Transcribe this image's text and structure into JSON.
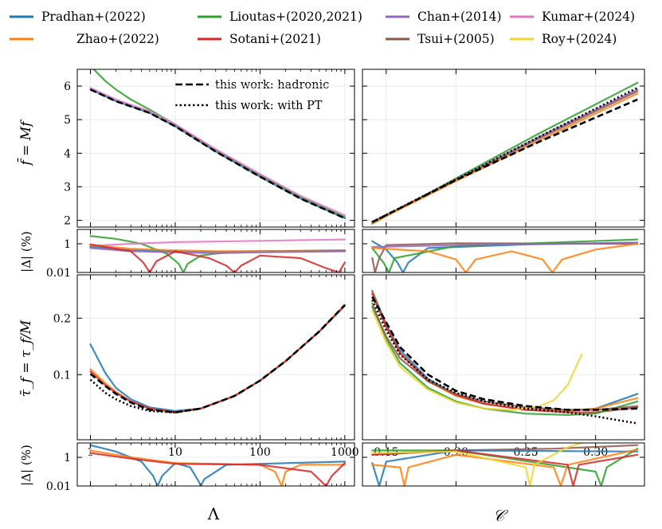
{
  "colors": {
    "pradhan": "#1f77b4",
    "zhao": "#ff7f0e",
    "lioutas": "#2ca02c",
    "sotani": "#d62728",
    "chan": "#9467bd",
    "tsui": "#8c564b",
    "kumar": "#e377c2",
    "roy": "#f0d531",
    "hadronic": "#000000",
    "withpt": "#000000"
  },
  "legend": [
    {
      "key": "pradhan",
      "label": "Pradhan+(2022)"
    },
    {
      "key": "lioutas",
      "label": "Lioutas+(2020,2021)"
    },
    {
      "key": "chan",
      "label": "Chan+(2014)"
    },
    {
      "key": "kumar",
      "label": "Kumar+(2024)"
    },
    {
      "key": "zhao",
      "label": "Zhao+(2022)"
    },
    {
      "key": "sotani",
      "label": "Sotani+(2021)"
    },
    {
      "key": "tsui",
      "label": "Tsui+(2005)"
    },
    {
      "key": "roy",
      "label": "Roy+(2024)"
    }
  ],
  "inner_legend": [
    {
      "key": "hadronic",
      "style": "dashed",
      "label": "this work: hadronic"
    },
    {
      "key": "withpt",
      "style": "dotted",
      "label": "this work: with PT"
    }
  ],
  "chart_data": [
    {
      "id": "f_vs_lambda",
      "type": "line",
      "xscale": "log",
      "xlim": [
        0.7,
        1300
      ],
      "ylim": [
        1.8,
        6.5
      ],
      "yticks": [
        "2",
        "3",
        "4",
        "5",
        "6"
      ],
      "ylabel": "f̄ = Mf",
      "series": [
        {
          "key": "lioutas",
          "x": [
            1,
            1.5,
            2,
            3,
            5,
            10,
            30,
            100,
            300,
            1000
          ],
          "y": [
            6.6,
            6.15,
            5.9,
            5.6,
            5.3,
            4.85,
            4.1,
            3.35,
            2.7,
            2.1
          ]
        },
        {
          "key": "kumar",
          "x": [
            1,
            2,
            5,
            10,
            30,
            100,
            300,
            1000
          ],
          "y": [
            5.95,
            5.6,
            5.25,
            4.86,
            4.12,
            3.38,
            2.73,
            2.15
          ]
        },
        {
          "key": "pradhan",
          "x": [
            1,
            2,
            5,
            10,
            30,
            100,
            300,
            1000
          ],
          "y": [
            5.9,
            5.55,
            5.2,
            4.8,
            4.05,
            3.3,
            2.65,
            2.06
          ]
        },
        {
          "key": "hadronic",
          "x": [
            1,
            2,
            5,
            10,
            30,
            100,
            300,
            1000
          ],
          "y": [
            5.9,
            5.55,
            5.2,
            4.8,
            4.05,
            3.3,
            2.65,
            2.06
          ]
        }
      ]
    },
    {
      "id": "f_vs_c",
      "type": "line",
      "xlim": [
        0.133,
        0.335
      ],
      "ylim": [
        1.8,
        6.5
      ],
      "series": [
        {
          "key": "lioutas",
          "x": [
            0.14,
            0.2,
            0.26,
            0.33
          ],
          "y": [
            1.9,
            3.25,
            4.6,
            6.1
          ]
        },
        {
          "key": "chan",
          "x": [
            0.14,
            0.2,
            0.26,
            0.33
          ],
          "y": [
            1.93,
            3.22,
            4.5,
            5.9
          ]
        },
        {
          "key": "tsui",
          "x": [
            0.14,
            0.2,
            0.26,
            0.33
          ],
          "y": [
            1.95,
            3.2,
            4.45,
            5.85
          ]
        },
        {
          "key": "zhao",
          "x": [
            0.14,
            0.2,
            0.26,
            0.33
          ],
          "y": [
            1.92,
            3.17,
            4.38,
            5.78
          ]
        },
        {
          "key": "hadronic",
          "x": [
            0.14,
            0.2,
            0.26,
            0.33
          ],
          "y": [
            1.95,
            3.2,
            4.35,
            5.6
          ]
        },
        {
          "key": "withpt",
          "x": [
            0.14,
            0.2,
            0.26,
            0.33
          ],
          "y": [
            1.95,
            3.22,
            4.5,
            5.95
          ]
        }
      ]
    },
    {
      "id": "fdev_vs_lambda",
      "type": "line",
      "xscale": "log",
      "yscale": "log",
      "xlim": [
        0.7,
        1300
      ],
      "ylim": [
        0.01,
        10
      ],
      "yticks": [
        "1",
        "0.01"
      ],
      "ylabel": "|Δ| (%)",
      "series": [
        {
          "key": "lioutas",
          "x": [
            1,
            2,
            4,
            8,
            11,
            12.5,
            14,
            20,
            40,
            100,
            1000
          ],
          "y": [
            3.5,
            2.2,
            1.0,
            0.2,
            0.04,
            0.01,
            0.04,
            0.15,
            0.25,
            0.3,
            0.35
          ]
        },
        {
          "key": "kumar",
          "x": [
            1,
            3,
            10,
            100,
            1000
          ],
          "y": [
            0.7,
            1.0,
            1.3,
            1.6,
            2.0
          ]
        },
        {
          "key": "pradhan",
          "x": [
            1,
            3,
            10,
            30,
            100,
            1000
          ],
          "y": [
            0.6,
            0.35,
            0.3,
            0.28,
            0.3,
            0.32
          ]
        },
        {
          "key": "zhao",
          "x": [
            1,
            3,
            10,
            30,
            100,
            1000
          ],
          "y": [
            0.8,
            0.45,
            0.35,
            0.3,
            0.3,
            0.3
          ]
        },
        {
          "key": "chan",
          "x": [
            1,
            3,
            10,
            30,
            100,
            1000
          ],
          "y": [
            0.5,
            0.3,
            0.25,
            0.22,
            0.25,
            0.3
          ]
        },
        {
          "key": "sotani",
          "x": [
            1,
            3,
            4.2,
            5,
            6,
            10,
            25,
            40,
            50,
            60,
            100,
            300,
            600,
            850,
            1000
          ],
          "y": [
            0.9,
            0.3,
            0.05,
            0.01,
            0.06,
            0.3,
            0.1,
            0.03,
            0.01,
            0.03,
            0.15,
            0.1,
            0.02,
            0.01,
            0.05
          ]
        }
      ]
    },
    {
      "id": "fdev_vs_c",
      "type": "line",
      "yscale": "log",
      "xlim": [
        0.133,
        0.335
      ],
      "ylim": [
        0.01,
        10
      ],
      "series": [
        {
          "key": "pradhan",
          "x": [
            0.14,
            0.15,
            0.158,
            0.162,
            0.166,
            0.18,
            0.25,
            0.33
          ],
          "y": [
            1.5,
            0.4,
            0.05,
            0.01,
            0.05,
            0.5,
            0.9,
            1.2
          ]
        },
        {
          "key": "tsui",
          "x": [
            0.14,
            0.142,
            0.145,
            0.15,
            0.2,
            0.33
          ],
          "y": [
            0.1,
            0.01,
            0.1,
            0.8,
            1.1,
            1.0
          ]
        },
        {
          "key": "lioutas",
          "x": [
            0.14,
            0.148,
            0.152,
            0.156,
            0.2,
            0.33
          ],
          "y": [
            0.5,
            0.05,
            0.01,
            0.1,
            0.7,
            2.0
          ]
        },
        {
          "key": "chan",
          "x": [
            0.14,
            0.2,
            0.33
          ],
          "y": [
            0.6,
            0.8,
            1.2
          ]
        },
        {
          "key": "zhao",
          "x": [
            0.14,
            0.18,
            0.2,
            0.207,
            0.214,
            0.24,
            0.262,
            0.269,
            0.276,
            0.3,
            0.33
          ],
          "y": [
            0.5,
            0.3,
            0.08,
            0.01,
            0.08,
            0.3,
            0.08,
            0.01,
            0.08,
            0.4,
            1.0
          ]
        }
      ]
    },
    {
      "id": "tau_vs_lambda",
      "type": "line",
      "xscale": "log",
      "yscale": "log",
      "xlim": [
        0.7,
        1300
      ],
      "ylim": [
        0.045,
        0.34
      ],
      "yticks": [
        "0.2",
        "0.1"
      ],
      "xticks": [
        "1",
        "10",
        "100",
        "1000"
      ],
      "xlabel": "Λ",
      "ylabel": "τ̄_f = τ_f/M",
      "series": [
        {
          "key": "pradhan",
          "x": [
            1,
            1.5,
            2,
            3,
            5,
            10,
            20,
            50,
            100,
            200,
            500,
            1000
          ],
          "y": [
            0.145,
            0.102,
            0.085,
            0.074,
            0.067,
            0.064,
            0.066,
            0.077,
            0.093,
            0.118,
            0.17,
            0.235
          ]
        },
        {
          "key": "zhao",
          "x": [
            1,
            1.5,
            2,
            3,
            5,
            10,
            20,
            50,
            100,
            200,
            500,
            1000
          ],
          "y": [
            0.107,
            0.09,
            0.081,
            0.072,
            0.066,
            0.063,
            0.066,
            0.077,
            0.093,
            0.118,
            0.17,
            0.235
          ]
        },
        {
          "key": "sotani",
          "x": [
            1,
            1.5,
            2,
            3,
            5,
            10,
            20,
            50,
            100,
            200,
            500,
            1000
          ],
          "y": [
            0.104,
            0.088,
            0.08,
            0.072,
            0.066,
            0.063,
            0.066,
            0.077,
            0.093,
            0.118,
            0.17,
            0.233
          ]
        },
        {
          "key": "hadronic",
          "x": [
            1,
            1.5,
            2,
            3,
            5,
            10,
            20,
            50,
            100,
            200,
            500,
            1000
          ],
          "y": [
            0.101,
            0.087,
            0.079,
            0.071,
            0.065,
            0.063,
            0.066,
            0.077,
            0.093,
            0.118,
            0.17,
            0.235
          ]
        },
        {
          "key": "withpt",
          "x": [
            1,
            1.5,
            2,
            3,
            5,
            10,
            20
          ],
          "y": [
            0.094,
            0.08,
            0.074,
            0.068,
            0.064,
            0.063,
            0.066
          ]
        }
      ]
    },
    {
      "id": "tau_vs_c",
      "type": "line",
      "yscale": "log",
      "xlim": [
        0.133,
        0.335
      ],
      "ylim": [
        0.045,
        0.34
      ],
      "xticks": [
        "0.15",
        "0.20",
        "0.25",
        "0.30"
      ],
      "xlabel": "𝒞",
      "series": [
        {
          "key": "pradhan",
          "x": [
            0.14,
            0.15,
            0.16,
            0.18,
            0.2,
            0.22,
            0.25,
            0.28,
            0.3,
            0.33
          ],
          "y": [
            0.28,
            0.185,
            0.135,
            0.095,
            0.078,
            0.07,
            0.065,
            0.064,
            0.066,
            0.079
          ]
        },
        {
          "key": "zhao",
          "x": [
            0.14,
            0.15,
            0.16,
            0.18,
            0.2,
            0.22,
            0.25,
            0.28,
            0.3,
            0.33
          ],
          "y": [
            0.275,
            0.18,
            0.13,
            0.092,
            0.077,
            0.07,
            0.065,
            0.064,
            0.066,
            0.075
          ]
        },
        {
          "key": "sotani",
          "x": [
            0.14,
            0.15,
            0.16,
            0.18,
            0.2,
            0.22,
            0.25,
            0.28,
            0.3,
            0.33
          ],
          "y": [
            0.27,
            0.18,
            0.13,
            0.093,
            0.078,
            0.07,
            0.065,
            0.063,
            0.063,
            0.067
          ]
        },
        {
          "key": "lioutas",
          "x": [
            0.14,
            0.15,
            0.16,
            0.18,
            0.2,
            0.22,
            0.25,
            0.28,
            0.3,
            0.33
          ],
          "y": [
            0.24,
            0.155,
            0.115,
            0.085,
            0.072,
            0.066,
            0.062,
            0.061,
            0.062,
            0.072
          ]
        },
        {
          "key": "tsui",
          "x": [
            0.14,
            0.15,
            0.16,
            0.18,
            0.2,
            0.22,
            0.25,
            0.28,
            0.3,
            0.33
          ],
          "y": [
            0.23,
            0.16,
            0.122,
            0.092,
            0.079,
            0.072,
            0.067,
            0.065,
            0.065,
            0.068
          ]
        },
        {
          "key": "roy",
          "x": [
            0.14,
            0.15,
            0.16,
            0.18,
            0.2,
            0.22,
            0.24,
            0.26,
            0.27,
            0.28,
            0.29
          ],
          "y": [
            0.22,
            0.148,
            0.11,
            0.083,
            0.071,
            0.066,
            0.065,
            0.068,
            0.073,
            0.088,
            0.128
          ]
        },
        {
          "key": "hadronic",
          "x": [
            0.14,
            0.15,
            0.16,
            0.18,
            0.2,
            0.22,
            0.25,
            0.28,
            0.3,
            0.33
          ],
          "y": [
            0.26,
            0.19,
            0.14,
            0.1,
            0.082,
            0.074,
            0.068,
            0.065,
            0.065,
            0.066
          ]
        },
        {
          "key": "withpt",
          "x": [
            0.14,
            0.15,
            0.16,
            0.18,
            0.2,
            0.22,
            0.25,
            0.28,
            0.3,
            0.33
          ],
          "y": [
            0.25,
            0.172,
            0.128,
            0.094,
            0.08,
            0.072,
            0.066,
            0.063,
            0.06,
            0.055
          ]
        }
      ]
    },
    {
      "id": "taudev_vs_lambda",
      "type": "line",
      "xscale": "log",
      "yscale": "log",
      "xlim": [
        0.7,
        1300
      ],
      "ylim": [
        0.01,
        10
      ],
      "yticks": [
        "1",
        "0.01"
      ],
      "ylabel": "|Δ| (%)",
      "series": [
        {
          "key": "pradhan",
          "x": [
            1,
            2,
            4,
            5.5,
            6.2,
            7,
            10,
            15,
            19,
            20,
            22,
            40,
            100,
            1000
          ],
          "y": [
            7.0,
            2.5,
            0.5,
            0.05,
            0.01,
            0.05,
            0.4,
            0.2,
            0.02,
            0.01,
            0.03,
            0.3,
            0.35,
            0.5
          ]
        },
        {
          "key": "zhao",
          "x": [
            1,
            3,
            10,
            100,
            150,
            180,
            200,
            300,
            1000
          ],
          "y": [
            3.0,
            1.0,
            0.4,
            0.3,
            0.1,
            0.01,
            0.1,
            0.3,
            0.3
          ]
        },
        {
          "key": "sotani",
          "x": [
            1,
            3,
            10,
            100,
            400,
            600,
            700,
            1000
          ],
          "y": [
            2.0,
            0.8,
            0.35,
            0.3,
            0.1,
            0.01,
            0.05,
            0.4
          ]
        }
      ]
    },
    {
      "id": "taudev_vs_c",
      "type": "line",
      "yscale": "log",
      "xlim": [
        0.133,
        0.335
      ],
      "ylim": [
        0.01,
        10
      ],
      "series": [
        {
          "key": "tsui",
          "x": [
            0.14,
            0.2,
            0.27,
            0.33
          ],
          "y": [
            1.5,
            3.0,
            4.0,
            7.0
          ]
        },
        {
          "key": "lioutas",
          "x": [
            0.14,
            0.2,
            0.3,
            0.304,
            0.308,
            0.33
          ],
          "y": [
            3.0,
            3.0,
            0.1,
            0.01,
            0.2,
            4.0
          ]
        },
        {
          "key": "pradhan",
          "x": [
            0.14,
            0.145,
            0.15,
            0.2,
            0.33
          ],
          "y": [
            0.4,
            0.01,
            0.5,
            3.0,
            2.5
          ]
        },
        {
          "key": "zhao",
          "x": [
            0.14,
            0.16,
            0.163,
            0.166,
            0.2,
            0.27,
            0.275,
            0.28,
            0.33
          ],
          "y": [
            0.3,
            0.2,
            0.01,
            0.2,
            1.5,
            0.2,
            0.01,
            0.3,
            3.5
          ]
        },
        {
          "key": "sotani",
          "x": [
            0.14,
            0.2,
            0.28,
            0.284,
            0.288,
            0.33
          ],
          "y": [
            1.5,
            3.0,
            0.3,
            0.01,
            0.3,
            1.5
          ]
        },
        {
          "key": "roy",
          "x": [
            0.14,
            0.2,
            0.25,
            0.253,
            0.256,
            0.28,
            0.29
          ],
          "y": [
            2.0,
            2.5,
            0.2,
            0.01,
            0.3,
            5.0,
            10.0
          ]
        }
      ]
    }
  ]
}
